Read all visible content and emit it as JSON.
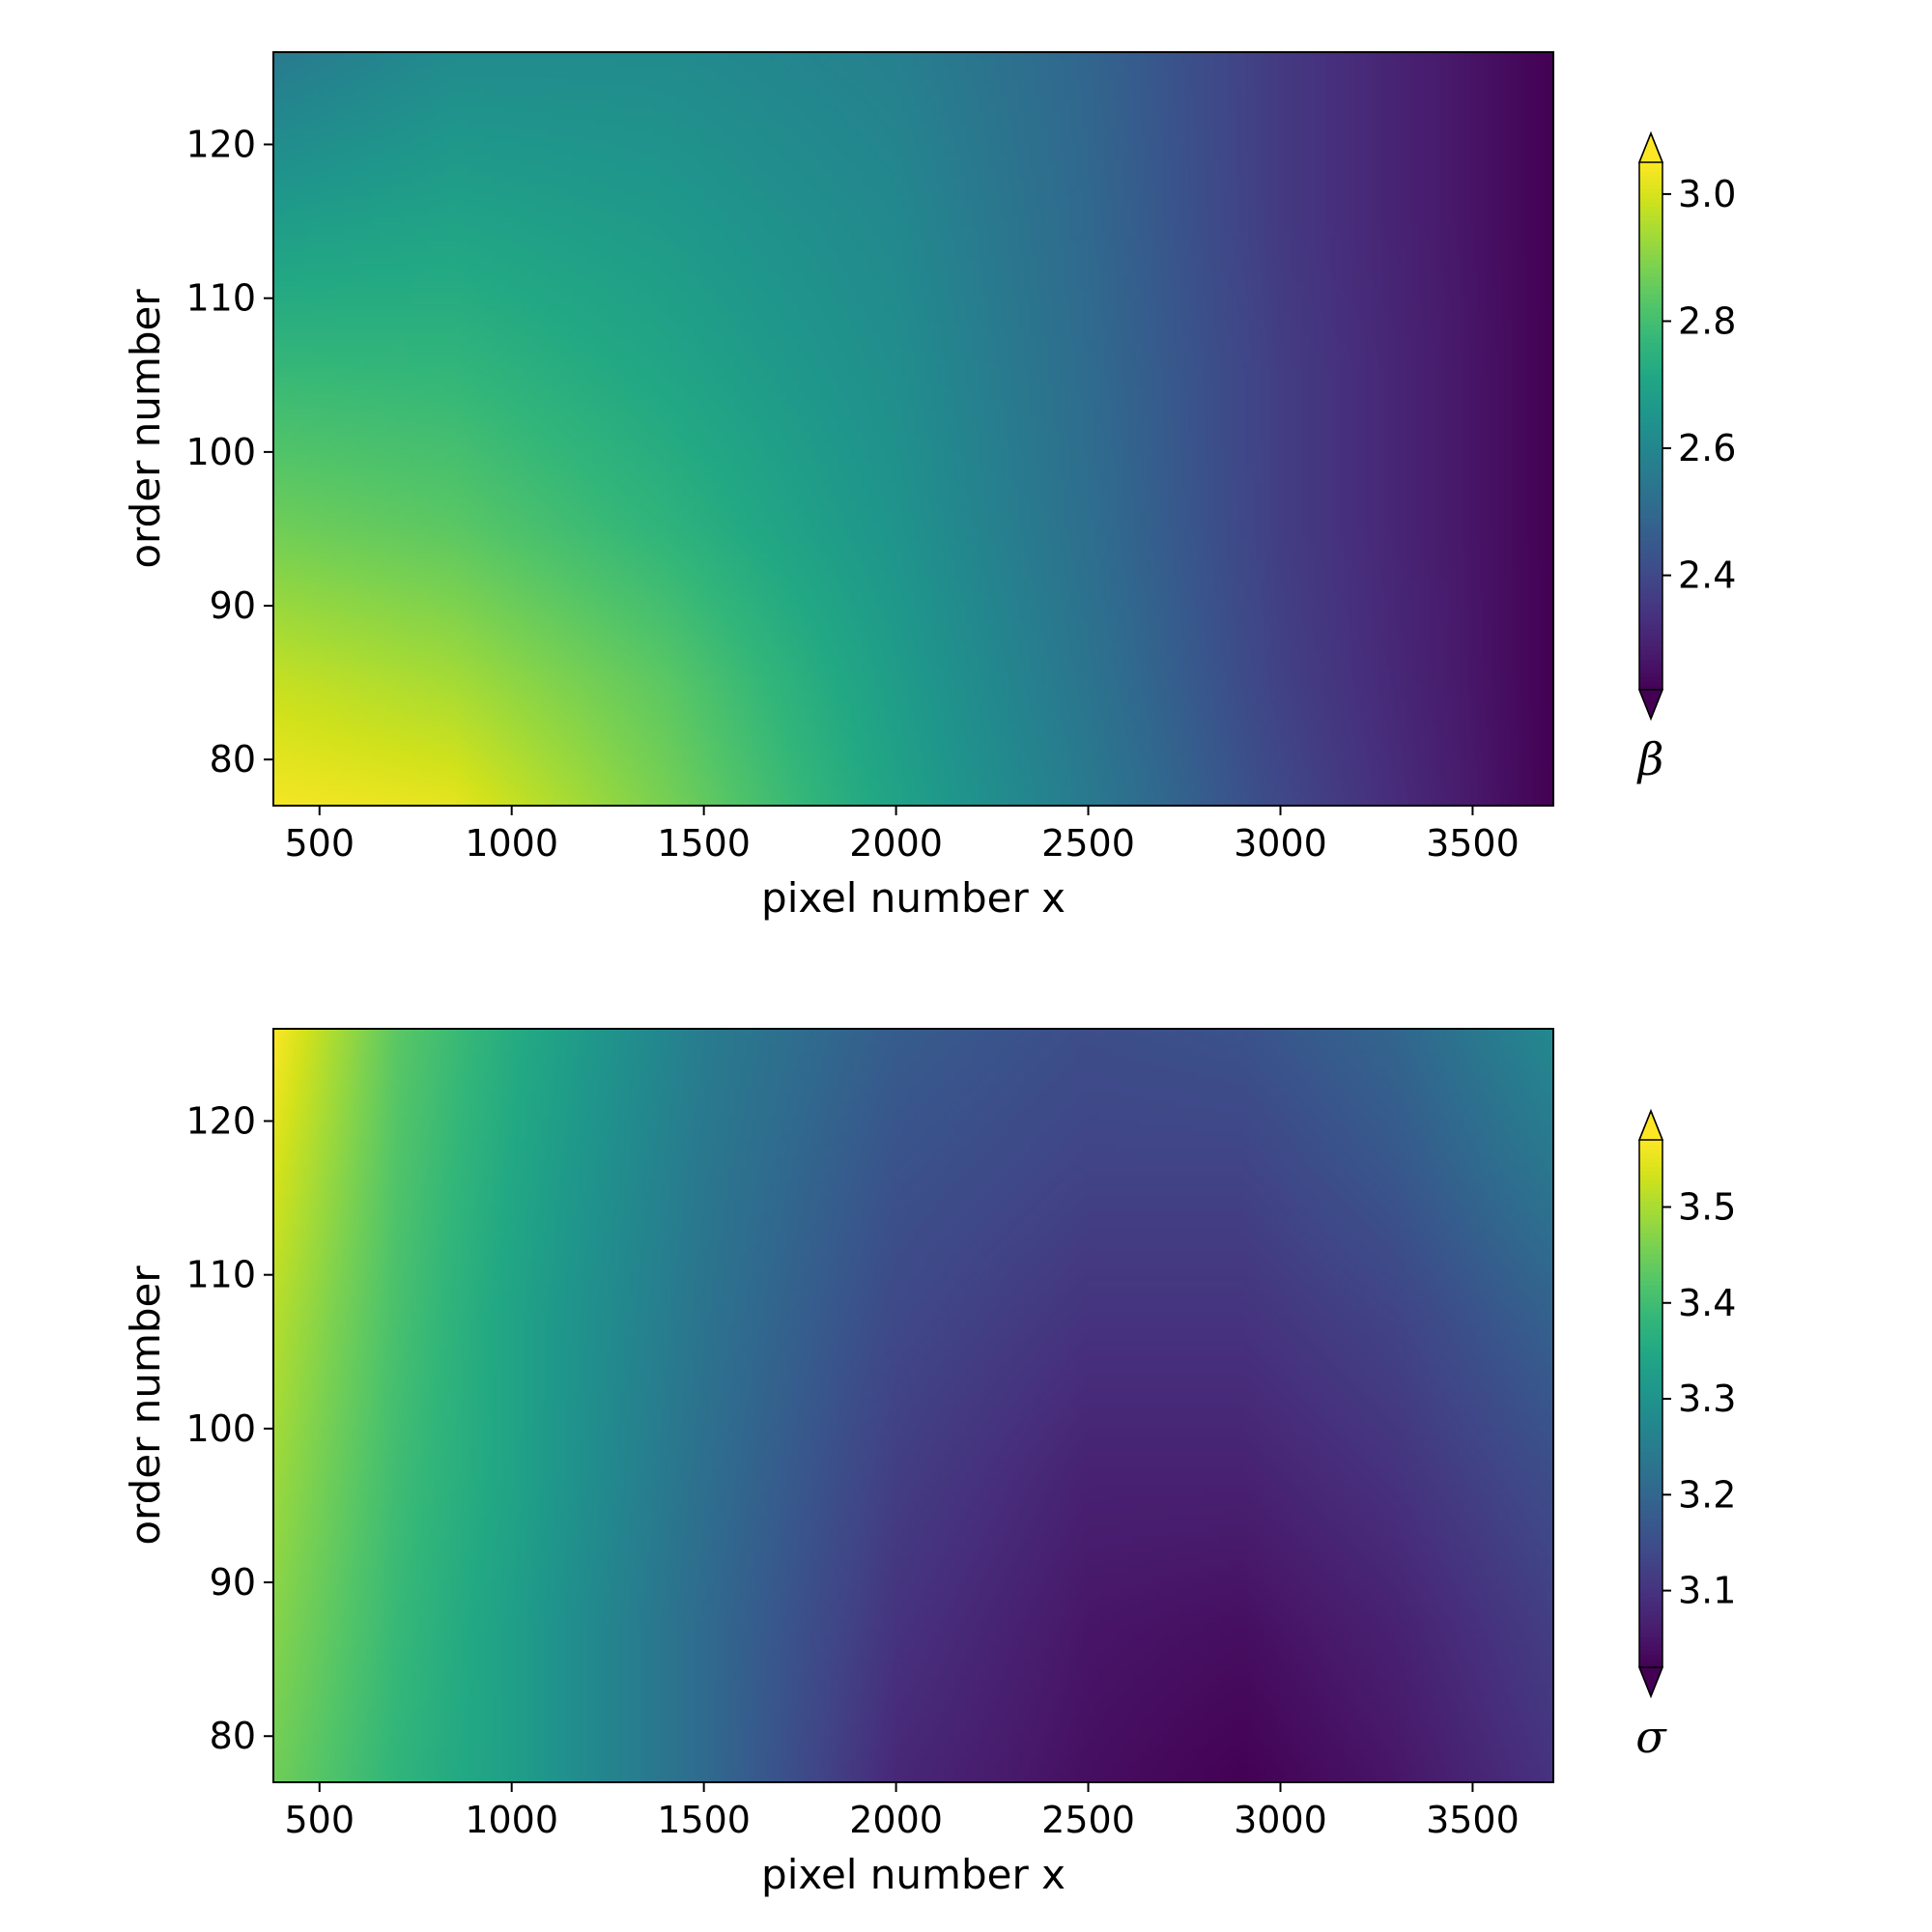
{
  "chart_data": [
    {
      "type": "heatmap",
      "title": "",
      "xlabel": "pixel number x",
      "ylabel": "order number",
      "xlim": [
        380,
        3710
      ],
      "ylim": [
        77,
        126
      ],
      "xticks": [
        500,
        1000,
        1500,
        2000,
        2500,
        3000,
        3500
      ],
      "xtick_labels": [
        "500",
        "1000",
        "1500",
        "2000",
        "2500",
        "3000",
        "3500"
      ],
      "yticks": [
        80,
        90,
        100,
        110,
        120
      ],
      "ytick_labels": [
        "80",
        "90",
        "100",
        "110",
        "120"
      ],
      "colormap": "viridis",
      "colorbar": {
        "label": "β",
        "range": [
          2.22,
          3.05
        ],
        "extend": "both",
        "ticks": [
          2.4,
          2.6,
          2.8,
          3.0
        ],
        "tick_labels": [
          "2.4",
          "2.6",
          "2.8",
          "3.0"
        ]
      },
      "x": [
        380,
        850,
        1400,
        2000,
        2500,
        3000,
        3710
      ],
      "y": [
        77,
        85,
        95,
        105,
        115,
        126
      ],
      "z": [
        [
          3.04,
          3.02,
          2.88,
          2.7,
          2.56,
          2.4,
          2.22
        ],
        [
          2.98,
          2.94,
          2.84,
          2.68,
          2.54,
          2.38,
          2.22
        ],
        [
          2.87,
          2.84,
          2.76,
          2.65,
          2.52,
          2.37,
          2.22
        ],
        [
          2.78,
          2.77,
          2.71,
          2.63,
          2.51,
          2.37,
          2.22
        ],
        [
          2.68,
          2.7,
          2.67,
          2.61,
          2.5,
          2.36,
          2.22
        ],
        [
          2.56,
          2.62,
          2.62,
          2.58,
          2.49,
          2.36,
          2.22
        ]
      ]
    },
    {
      "type": "heatmap",
      "title": "",
      "xlabel": "pixel number x",
      "ylabel": "order number",
      "xlim": [
        380,
        3710
      ],
      "ylim": [
        77,
        126
      ],
      "xticks": [
        500,
        1000,
        1500,
        2000,
        2500,
        3000,
        3500
      ],
      "xtick_labels": [
        "500",
        "1000",
        "1500",
        "2000",
        "2500",
        "3000",
        "3500"
      ],
      "yticks": [
        80,
        90,
        100,
        110,
        120
      ],
      "ytick_labels": [
        "80",
        "90",
        "100",
        "110",
        "120"
      ],
      "colormap": "viridis",
      "colorbar": {
        "label": "σ",
        "range": [
          3.02,
          3.57
        ],
        "extend": "both",
        "ticks": [
          3.1,
          3.2,
          3.3,
          3.4,
          3.5
        ],
        "tick_labels": [
          "3.1",
          "3.2",
          "3.3",
          "3.4",
          "3.5"
        ]
      },
      "x": [
        380,
        700,
        1000,
        1500,
        2000,
        2500,
        2900,
        3300,
        3710
      ],
      "y": [
        77,
        87,
        97,
        107,
        117,
        126
      ],
      "z": [
        [
          3.45,
          3.38,
          3.33,
          3.21,
          3.08,
          3.04,
          3.02,
          3.05,
          3.1
        ],
        [
          3.47,
          3.39,
          3.33,
          3.21,
          3.1,
          3.05,
          3.04,
          3.07,
          3.12
        ],
        [
          3.49,
          3.4,
          3.34,
          3.22,
          3.12,
          3.07,
          3.07,
          3.1,
          3.15
        ],
        [
          3.51,
          3.41,
          3.34,
          3.23,
          3.14,
          3.1,
          3.1,
          3.13,
          3.19
        ],
        [
          3.54,
          3.42,
          3.35,
          3.24,
          3.16,
          3.13,
          3.13,
          3.17,
          3.24
        ],
        [
          3.57,
          3.43,
          3.36,
          3.25,
          3.18,
          3.15,
          3.16,
          3.2,
          3.28
        ]
      ]
    }
  ]
}
